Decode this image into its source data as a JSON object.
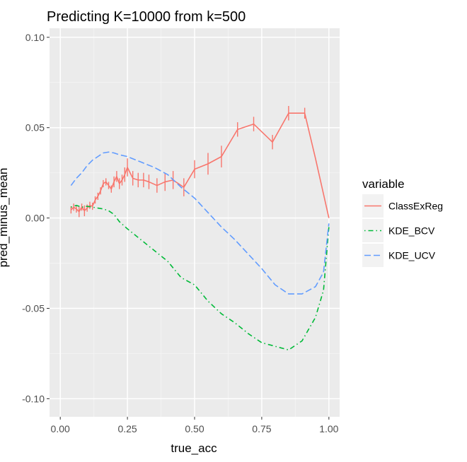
{
  "chart_data": {
    "type": "line",
    "title": "Predicting K=10000 from k=500",
    "xlabel": "true_acc",
    "ylabel": "pred_minus_mean",
    "xlim": [
      -0.04,
      1.04
    ],
    "ylim": [
      -0.11,
      0.105
    ],
    "x_ticks": [
      0.0,
      0.25,
      0.5,
      0.75,
      1.0
    ],
    "x_tick_labels": [
      "0.00",
      "0.25",
      "0.50",
      "0.75",
      "1.00"
    ],
    "y_ticks": [
      0.1,
      0.05,
      0.0,
      -0.05,
      -0.1
    ],
    "y_tick_labels": [
      "0.10",
      "0.05",
      "0.00",
      "-0.05",
      "-0.10"
    ],
    "grid": true,
    "legend": {
      "title": "variable",
      "position": "right"
    },
    "series": [
      {
        "name": "ClassExReg",
        "color": "#F8766D",
        "linetype": "solid",
        "x": [
          0.04,
          0.05,
          0.06,
          0.07,
          0.08,
          0.09,
          0.1,
          0.11,
          0.12,
          0.13,
          0.14,
          0.15,
          0.16,
          0.17,
          0.18,
          0.19,
          0.2,
          0.21,
          0.22,
          0.23,
          0.24,
          0.25,
          0.27,
          0.29,
          0.31,
          0.33,
          0.36,
          0.39,
          0.42,
          0.46,
          0.5,
          0.55,
          0.6,
          0.66,
          0.72,
          0.79,
          0.85,
          0.91,
          0.95,
          1.0
        ],
        "y": [
          0.0045,
          0.006,
          0.005,
          0.0035,
          0.006,
          0.004,
          0.0055,
          0.007,
          0.0065,
          0.01,
          0.012,
          0.015,
          0.019,
          0.02,
          0.018,
          0.016,
          0.02,
          0.023,
          0.019,
          0.021,
          0.024,
          0.028,
          0.022,
          0.021,
          0.021,
          0.02,
          0.018,
          0.02,
          0.021,
          0.017,
          0.027,
          0.03,
          0.034,
          0.049,
          0.052,
          0.042,
          0.058,
          0.058,
          0.033,
          0.0
        ],
        "err": [
          0.002,
          0.002,
          0.002,
          0.003,
          0.002,
          0.003,
          0.002,
          0.002,
          0.002,
          0.002,
          0.002,
          0.002,
          0.002,
          0.002,
          0.002,
          0.002,
          0.003,
          0.003,
          0.003,
          0.003,
          0.004,
          0.005,
          0.004,
          0.004,
          0.004,
          0.004,
          0.004,
          0.005,
          0.005,
          0.005,
          0.005,
          0.006,
          0.006,
          0.004,
          0.004,
          0.004,
          0.004,
          0.003,
          0.0,
          0.0
        ]
      },
      {
        "name": "KDE_BCV",
        "color": "#00BA38",
        "linetype": "dotdash",
        "x": [
          0.04,
          0.06,
          0.08,
          0.1,
          0.12,
          0.14,
          0.16,
          0.18,
          0.2,
          0.22,
          0.25,
          0.3,
          0.35,
          0.4,
          0.45,
          0.5,
          0.55,
          0.6,
          0.65,
          0.7,
          0.75,
          0.8,
          0.85,
          0.9,
          0.95,
          0.98,
          1.0
        ],
        "y": [
          0.006,
          0.007,
          0.006,
          0.0065,
          0.006,
          0.0055,
          0.005,
          0.004,
          0.002,
          -0.002,
          -0.006,
          -0.012,
          -0.018,
          -0.024,
          -0.033,
          -0.037,
          -0.046,
          -0.053,
          -0.058,
          -0.064,
          -0.069,
          -0.071,
          -0.073,
          -0.068,
          -0.055,
          -0.04,
          -0.005
        ]
      },
      {
        "name": "KDE_UCV",
        "color": "#619CFF",
        "linetype": "longdash",
        "x": [
          0.04,
          0.06,
          0.08,
          0.1,
          0.12,
          0.14,
          0.16,
          0.18,
          0.2,
          0.22,
          0.25,
          0.3,
          0.35,
          0.4,
          0.45,
          0.5,
          0.55,
          0.6,
          0.65,
          0.7,
          0.75,
          0.8,
          0.85,
          0.9,
          0.95,
          0.98,
          1.0
        ],
        "y": [
          0.018,
          0.022,
          0.025,
          0.029,
          0.032,
          0.034,
          0.036,
          0.0365,
          0.036,
          0.035,
          0.034,
          0.031,
          0.028,
          0.024,
          0.017,
          0.011,
          0.003,
          -0.005,
          -0.012,
          -0.02,
          -0.028,
          -0.037,
          -0.042,
          -0.042,
          -0.038,
          -0.03,
          -0.003
        ]
      }
    ]
  }
}
